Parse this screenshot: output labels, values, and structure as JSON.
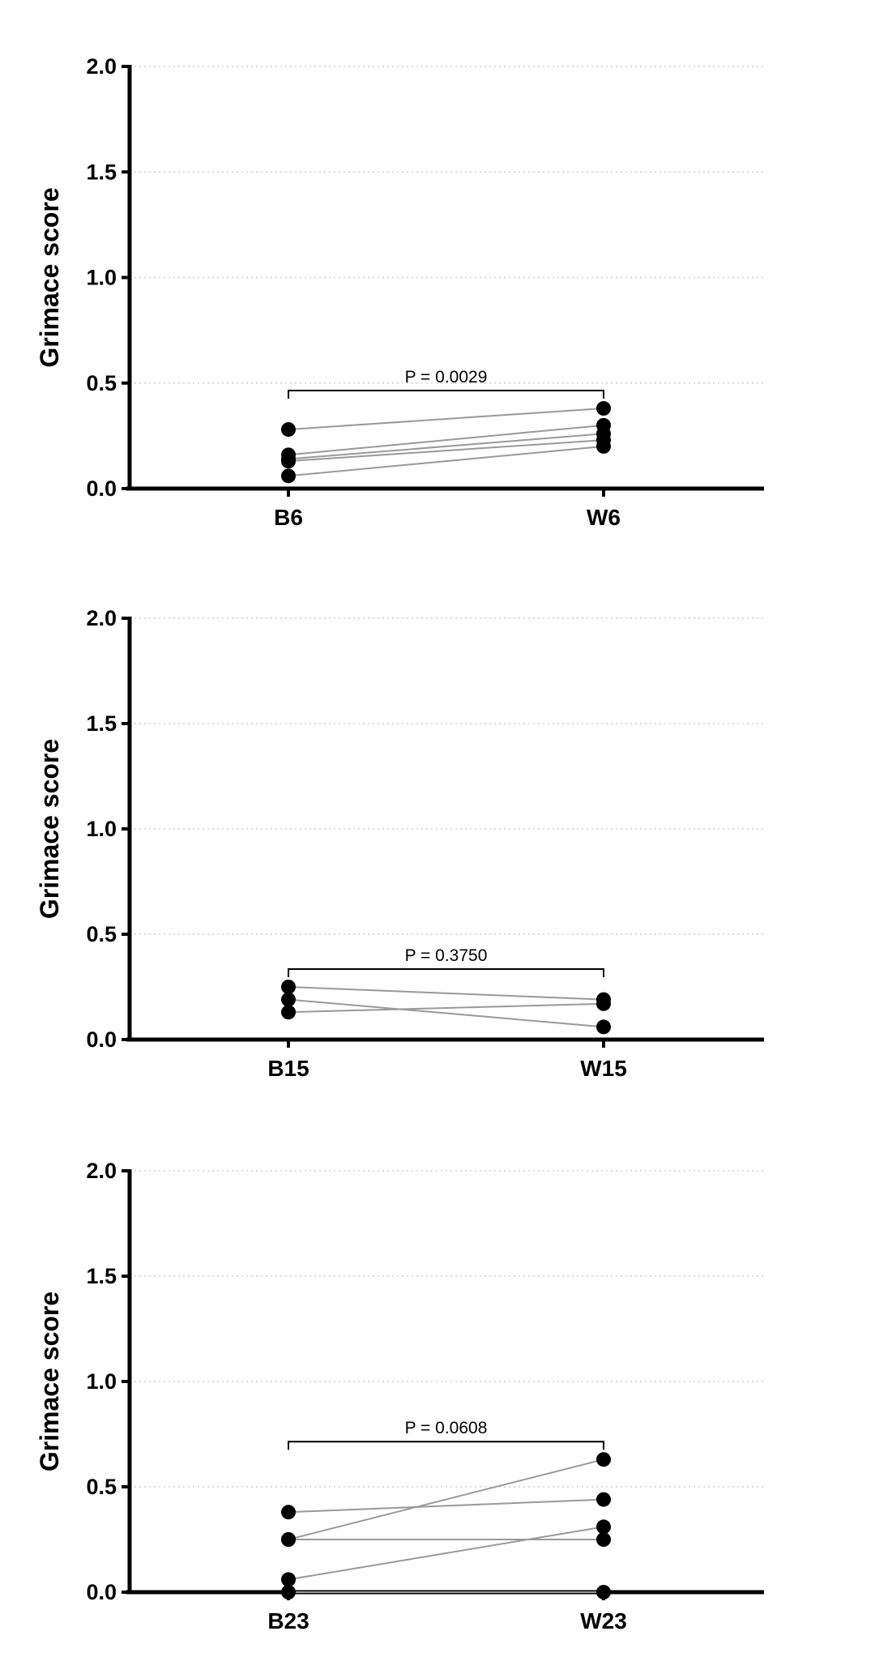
{
  "chart_data": [
    {
      "type": "line",
      "categories": [
        "B6",
        "W6"
      ],
      "ylabel": "Grimace score",
      "ylim": [
        0,
        2.0
      ],
      "yticks": [
        "0.0",
        "0.5",
        "1.0",
        "1.5",
        "2.0"
      ],
      "grid": true,
      "annotation": "P = 0.0029",
      "series": [
        {
          "values": [
            0.28,
            0.38
          ]
        },
        {
          "values": [
            0.16,
            0.3
          ]
        },
        {
          "values": [
            0.14,
            0.26
          ]
        },
        {
          "values": [
            0.13,
            0.23
          ]
        },
        {
          "values": [
            0.06,
            0.2
          ]
        }
      ]
    },
    {
      "type": "line",
      "categories": [
        "B15",
        "W15"
      ],
      "ylabel": "Grimace score",
      "ylim": [
        0,
        2.0
      ],
      "yticks": [
        "0.0",
        "0.5",
        "1.0",
        "1.5",
        "2.0"
      ],
      "grid": true,
      "annotation": "P = 0.3750",
      "series": [
        {
          "values": [
            0.25,
            0.19
          ]
        },
        {
          "values": [
            0.19,
            0.06
          ]
        },
        {
          "values": [
            0.13,
            0.17
          ]
        }
      ]
    },
    {
      "type": "line",
      "categories": [
        "B23",
        "W23"
      ],
      "ylabel": "Grimace score",
      "ylim": [
        0,
        2.0
      ],
      "yticks": [
        "0.0",
        "0.5",
        "1.0",
        "1.5",
        "2.0"
      ],
      "grid": true,
      "annotation": "P = 0.0608",
      "series": [
        {
          "values": [
            0.38,
            0.44
          ]
        },
        {
          "values": [
            0.25,
            0.63
          ]
        },
        {
          "values": [
            0.25,
            0.25
          ]
        },
        {
          "values": [
            0.06,
            0.31
          ]
        },
        {
          "values": [
            0.0,
            0.0
          ]
        }
      ]
    }
  ]
}
